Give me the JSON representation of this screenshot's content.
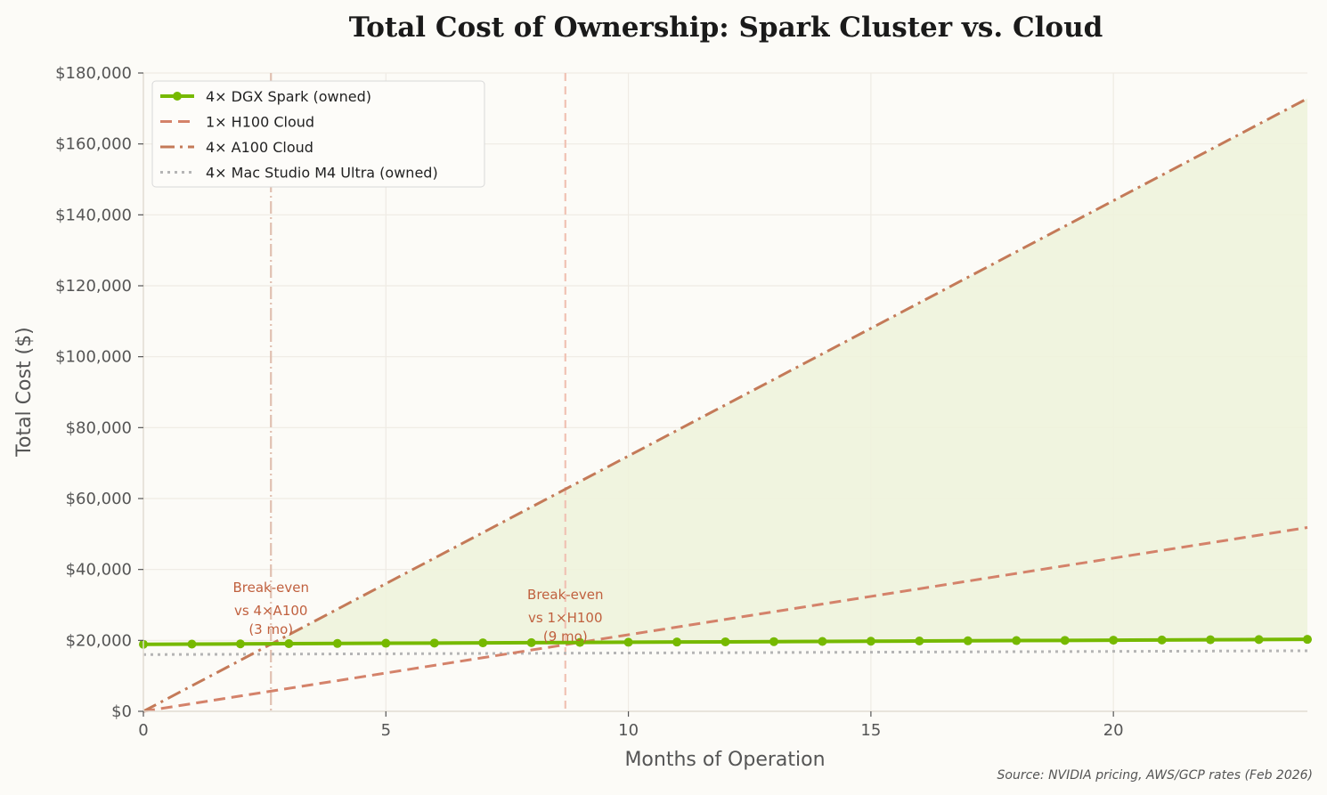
{
  "chart_data": {
    "type": "line",
    "title": "Total Cost of Ownership: Spark Cluster vs. Cloud",
    "xlabel": "Months of Operation",
    "ylabel": "Total Cost ($)",
    "xlim": [
      0,
      24
    ],
    "ylim": [
      0,
      180000
    ],
    "xticks": [
      0,
      5,
      10,
      15,
      20
    ],
    "xtick_labels": [
      "0",
      "5",
      "10",
      "15",
      "20"
    ],
    "yticks": [
      0,
      20000,
      40000,
      60000,
      80000,
      100000,
      120000,
      140000,
      160000,
      180000
    ],
    "ytick_labels": [
      "$0",
      "$20,000",
      "$40,000",
      "$60,000",
      "$80,000",
      "$100,000",
      "$120,000",
      "$140,000",
      "$160,000",
      "$180,000"
    ],
    "grid": true,
    "legend_position": "top-left",
    "x": [
      0,
      1,
      2,
      3,
      4,
      5,
      6,
      7,
      8,
      9,
      10,
      11,
      12,
      13,
      14,
      15,
      16,
      17,
      18,
      19,
      20,
      21,
      22,
      23,
      24
    ],
    "series": [
      {
        "name": "4× DGX Spark (owned)",
        "color": "#76b900",
        "style": "solid-markers",
        "values": [
          18900,
          18958,
          19016,
          19074,
          19132,
          19190,
          19248,
          19306,
          19364,
          19422,
          19480,
          19538,
          19596,
          19654,
          19712,
          19770,
          19828,
          19886,
          19944,
          20002,
          20060,
          20118,
          20176,
          20234,
          20292
        ]
      },
      {
        "name": "1× H100 Cloud",
        "color": "#d4826a",
        "style": "dashed",
        "values": [
          0,
          2160,
          4320,
          6480,
          8640,
          10800,
          12960,
          15120,
          17280,
          19440,
          21600,
          23760,
          25920,
          28080,
          30240,
          32400,
          34560,
          36720,
          38880,
          41040,
          43200,
          45360,
          47520,
          49680,
          51840
        ]
      },
      {
        "name": "4× A100 Cloud",
        "color": "#c47a58",
        "style": "dashdot",
        "values": [
          0,
          7200,
          14400,
          21600,
          28800,
          36000,
          43200,
          50400,
          57600,
          64800,
          72000,
          79200,
          86400,
          93600,
          100800,
          108000,
          115200,
          122400,
          129600,
          136800,
          144000,
          151200,
          158400,
          165600,
          172800
        ]
      },
      {
        "name": "4× Mac Studio M4 Ultra (owned)",
        "color": "#b5b5b5",
        "style": "dotted",
        "values": [
          16000,
          16045,
          16090,
          16135,
          16180,
          16225,
          16270,
          16315,
          16360,
          16405,
          16450,
          16495,
          16540,
          16585,
          16630,
          16675,
          16720,
          16765,
          16810,
          16855,
          16900,
          16945,
          16990,
          17035,
          17080
        ]
      }
    ],
    "fill_between": {
      "upper": "4× A100 Cloud",
      "lower": "4× DGX Spark (owned)",
      "color": "#eef3dc"
    },
    "annotations": [
      {
        "x": 2.63,
        "color": "#e0bfb0",
        "style": "dashdot",
        "label_lines": [
          "Break-even",
          "vs 4×A100",
          "(3 mo)"
        ]
      },
      {
        "x": 8.7,
        "color": "#f0c2b4",
        "style": "dashed",
        "label_lines": [
          "Break-even",
          "vs 1×H100",
          "(9 mo)"
        ]
      }
    ],
    "source": "Source: NVIDIA pricing, AWS/GCP rates (Feb 2026)"
  }
}
